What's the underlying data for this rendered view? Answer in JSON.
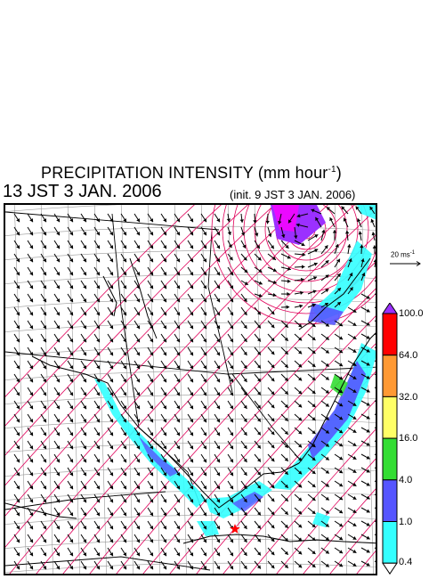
{
  "header": {
    "title_prefix": "PRECIPITATION INTENSITY (mm hour",
    "title_exp": "-1",
    "title_suffix": ")",
    "valid_time": "13 JST 3 JAN. 2006",
    "init_time": "(init. 9 JST 3 JAN. 2006)"
  },
  "reference_vector": {
    "label_prefix": "20 ms",
    "label_exp": "-1"
  },
  "colorbar": {
    "labels": [
      "100.0",
      "64.0",
      "32.0",
      "16.0",
      "4.0",
      "1.0",
      "0.4"
    ],
    "colors": [
      "#9b30ff",
      "#ff0000",
      "#ff9933",
      "#ffff66",
      "#33dd33",
      "#5555ff",
      "#33ffff",
      "#ffffff"
    ]
  },
  "map": {
    "precip_color": "#33ffff",
    "precip_strong_color": "#5555ff",
    "contour_color": "#e0005a",
    "grid_color": "#999999",
    "coast_color": "#000000",
    "vector_color": "#000000",
    "marker_icon": "red-star-icon",
    "marker_color": "#ff0000"
  }
}
